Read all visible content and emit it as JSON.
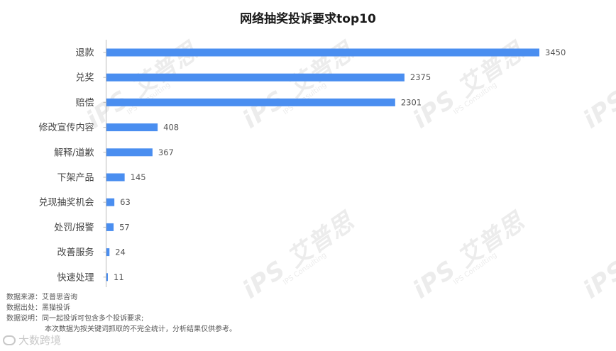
{
  "chart_data": {
    "type": "bar",
    "orientation": "horizontal",
    "title": "网络抽奖投诉要求top10",
    "categories": [
      "退款",
      "兑奖",
      "赔偿",
      "修改宣传内容",
      "解释/道歉",
      "下架产品",
      "兑现抽奖机会",
      "处罚/报警",
      "改善服务",
      "快速处理"
    ],
    "values": [
      3450,
      2375,
      2301,
      408,
      367,
      145,
      63,
      57,
      24,
      11
    ],
    "xlim": [
      0,
      3450
    ],
    "color": "#4a8ef0",
    "grid": false,
    "legend": "none"
  },
  "notes": {
    "source_label": "数据来源：",
    "source_value": "艾普思咨询",
    "origin_label": "数据出处：",
    "origin_value": "黑猫投诉",
    "desc_label": "数据说明：",
    "desc_line1": "同一起投诉可包含多个投诉要求;",
    "desc_line2": "本次数据为按关键词抓取的不完全统计，分析结果仅供参考。"
  },
  "watermark": {
    "mark": "iPS 艾普思",
    "sub": "IPS Consulting"
  },
  "brand": {
    "icon": "brand-logo-icon",
    "text": "大数跨境"
  }
}
